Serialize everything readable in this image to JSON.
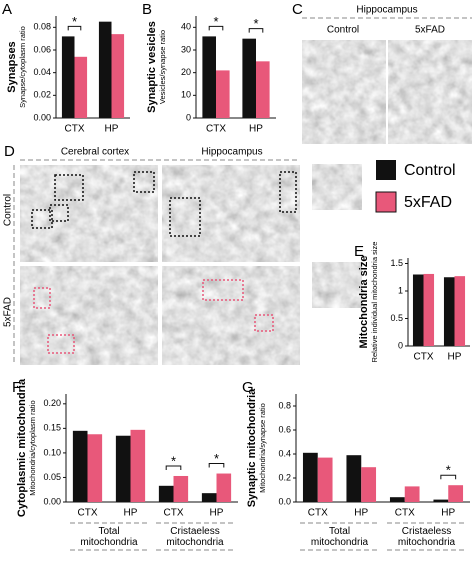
{
  "chart_data": [
    {
      "type": "bar",
      "panel": "A",
      "title": "Synapses",
      "ylabel": "Synapse/cytoplasm ratio",
      "categories": [
        "CTX",
        "HP"
      ],
      "series": [
        {
          "name": "Control",
          "color": "#111111",
          "values": [
            0.072,
            0.085
          ]
        },
        {
          "name": "5xFAD",
          "color": "#e8587a",
          "values": [
            0.054,
            0.074
          ]
        }
      ],
      "annotations": [
        "*",
        null
      ],
      "ylim": [
        0,
        0.09
      ],
      "yticks": [
        {
          "value": 0,
          "label": "0.00"
        },
        {
          "value": 0.02,
          "label": "0.02"
        },
        {
          "value": 0.04,
          "label": "0.04"
        },
        {
          "value": 0.06,
          "label": "0.06"
        },
        {
          "value": 0.08,
          "label": "0.08"
        }
      ]
    },
    {
      "type": "bar",
      "panel": "B",
      "title": "Synaptic vesicles",
      "ylabel": "Vesicles/synapse ratio",
      "categories": [
        "CTX",
        "HP"
      ],
      "series": [
        {
          "name": "Control",
          "color": "#111111",
          "values": [
            36,
            35
          ]
        },
        {
          "name": "5xFAD",
          "color": "#e8587a",
          "values": [
            21,
            25
          ]
        }
      ],
      "annotations": [
        "*",
        "*"
      ],
      "ylim": [
        0,
        45
      ],
      "yticks": [
        0,
        10,
        20,
        30,
        40
      ]
    },
    {
      "type": "bar",
      "panel": "E",
      "title": "Mitochondria size",
      "ylabel": "Relative individual mitochondria size",
      "categories": [
        "CTX",
        "HP"
      ],
      "series": [
        {
          "name": "Control",
          "color": "#111111",
          "values": [
            1.3,
            1.25
          ]
        },
        {
          "name": "5xFAD",
          "color": "#e8587a",
          "values": [
            1.31,
            1.27
          ]
        }
      ],
      "annotations": [
        null,
        null
      ],
      "ylim": [
        0,
        1.6
      ],
      "yticks": [
        0,
        0.5,
        1,
        1.5
      ]
    },
    {
      "type": "bar",
      "panel": "F",
      "title": "Cytoplasmic mitochondria",
      "ylabel": "Mitochondria/cytoplasm ratio",
      "categories": [
        "CTX",
        "HP",
        "CTX",
        "HP"
      ],
      "groups": [
        "Total mitochondria",
        "Cristaeless mitochondria"
      ],
      "series": [
        {
          "name": "Control",
          "color": "#111111",
          "values": [
            0.145,
            0.135,
            0.033,
            0.018
          ]
        },
        {
          "name": "5xFAD",
          "color": "#e8587a",
          "values": [
            0.138,
            0.147,
            0.053,
            0.058
          ]
        }
      ],
      "annotations": [
        null,
        null,
        "*",
        "*"
      ],
      "ylim": [
        0,
        0.22
      ],
      "yticks": [
        {
          "value": 0,
          "label": "0.00"
        },
        {
          "value": 0.05,
          "label": "0.05"
        },
        {
          "value": 0.1,
          "label": "0.10"
        },
        {
          "value": 0.15,
          "label": "0.15"
        },
        {
          "value": 0.2,
          "label": "0.20"
        }
      ]
    },
    {
      "type": "bar",
      "panel": "G",
      "title": "Synaptic mitochondria",
      "ylabel": "Mitochondria/synapse ratio",
      "categories": [
        "CTX",
        "HP",
        "CTX",
        "HP"
      ],
      "groups": [
        "Total mitochondria",
        "Cristaeless mitochondria"
      ],
      "series": [
        {
          "name": "Control",
          "color": "#111111",
          "values": [
            0.41,
            0.39,
            0.04,
            0.02
          ]
        },
        {
          "name": "5xFAD",
          "color": "#e8587a",
          "values": [
            0.37,
            0.29,
            0.13,
            0.14
          ]
        }
      ],
      "annotations": [
        null,
        null,
        null,
        "*"
      ],
      "ylim": [
        0,
        0.9
      ],
      "yticks": [
        {
          "value": 0,
          "label": "0.0"
        },
        {
          "value": 0.2,
          "label": "0.2"
        },
        {
          "value": 0.4,
          "label": "0.4"
        },
        {
          "value": 0.6,
          "label": "0.6"
        },
        {
          "value": 0.8,
          "label": "0.8"
        }
      ]
    }
  ],
  "images": {
    "C": {
      "panel": "C",
      "title": "Hippocampus",
      "columns": [
        "Control",
        "5xFAD"
      ]
    },
    "D": {
      "panel": "D",
      "columns": [
        "Cerebral cortex",
        "Hippocampus"
      ],
      "rows": [
        "Control",
        "5xFAD"
      ]
    }
  }
}
